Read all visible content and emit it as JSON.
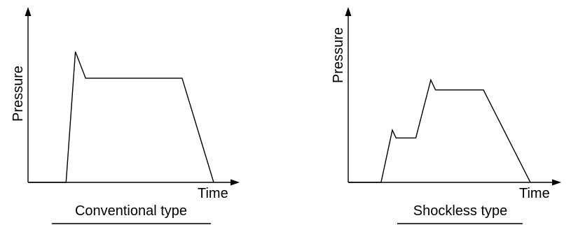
{
  "chart_data": [
    {
      "type": "line",
      "title": "Conventional type",
      "xlabel": "Time",
      "ylabel": "Pressure",
      "grid": false,
      "ticks": false,
      "xlim": [
        0,
        100
      ],
      "ylim": [
        0,
        100
      ],
      "series": [
        {
          "x": [
            0,
            20.5,
            25.5,
            31,
            83,
            100
          ],
          "y": [
            0,
            0,
            79,
            63,
            63,
            0
          ]
        }
      ]
    },
    {
      "type": "line",
      "title": "Shockless type",
      "xlabel": "Time",
      "ylabel": "Pressure",
      "grid": false,
      "ticks": false,
      "xlim": [
        0,
        100
      ],
      "ylim": [
        0,
        100
      ],
      "series": [
        {
          "x": [
            0,
            17.5,
            23.5,
            25.5,
            36,
            44,
            46.5,
            72,
            97
          ],
          "y": [
            0,
            0,
            36.5,
            31,
            31,
            71.5,
            64.5,
            64.5,
            0
          ]
        }
      ]
    }
  ]
}
